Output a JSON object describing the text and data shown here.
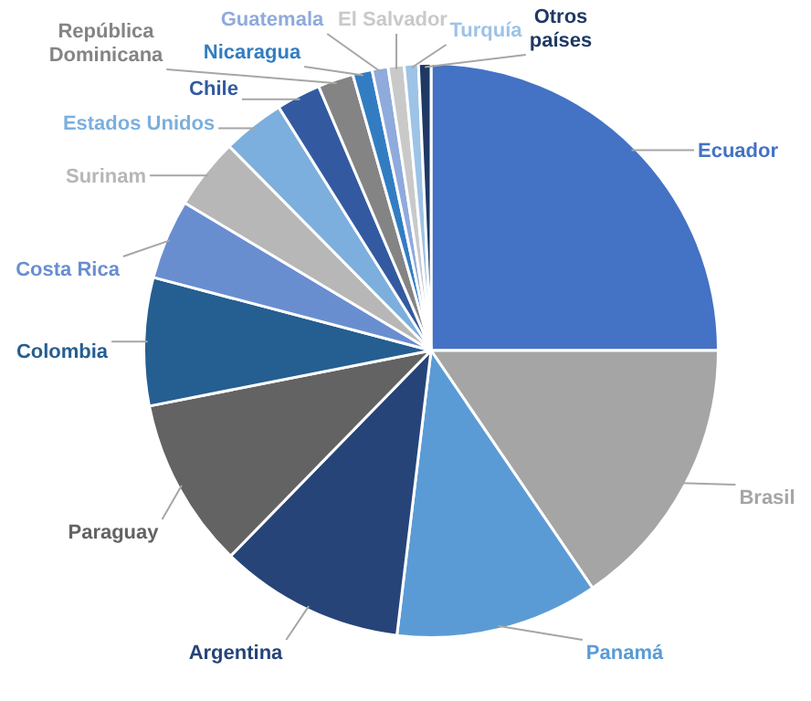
{
  "chart_data": {
    "type": "pie",
    "categories": [
      "Ecuador",
      "Brasil",
      "Panamá",
      "Argentina",
      "Paraguay",
      "Colombia",
      "Costa Rica",
      "Surinam",
      "Estados Unidos",
      "Chile",
      "República Dominicana",
      "Nicaragua",
      "Guatemala",
      "El Salvador",
      "Turquía",
      "Otros países"
    ],
    "values": [
      25,
      15.5,
      11.4,
      10.4,
      9.6,
      7.2,
      4.5,
      4,
      3.5,
      2.5,
      2,
      1.1,
      0.9,
      0.9,
      0.8,
      0.7
    ],
    "colors": [
      "#4472c4",
      "#a5a5a5",
      "#5b9bd5",
      "#264478",
      "#636363",
      "#255e91",
      "#698ed0",
      "#b7b7b7",
      "#7cafdd",
      "#335aa1",
      "#848484",
      "#327dc2",
      "#8faadc",
      "#c9c9c9",
      "#9dc3e6",
      "#1f3864"
    ],
    "legend": false
  }
}
